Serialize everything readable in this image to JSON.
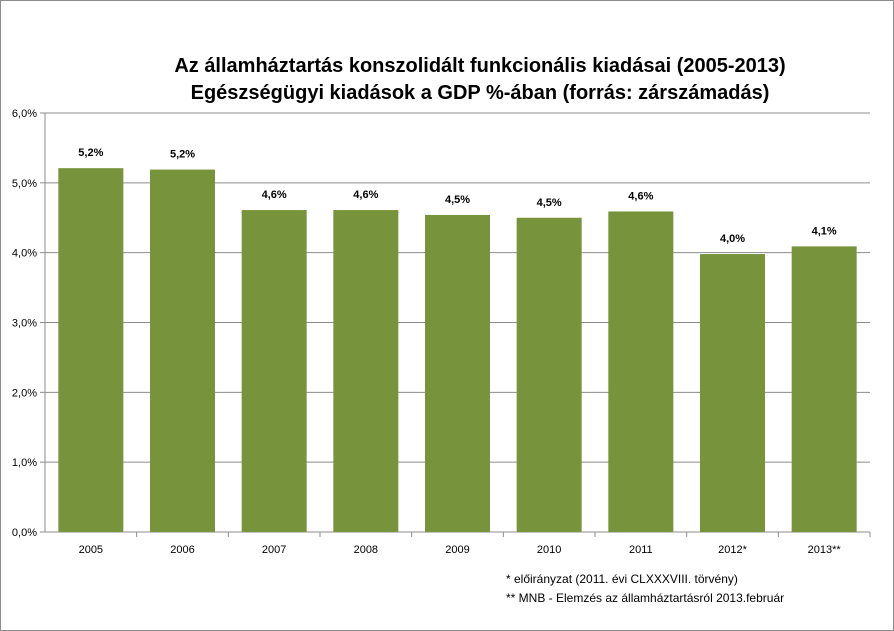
{
  "chart_data": {
    "type": "bar",
    "title": "Az államháztartás konszolidált funkcionális kiadásai (2005-2013)",
    "subtitle": "Egészségügyi kiadások a GDP %-ában (forrás: zárszámadás)",
    "categories": [
      "2005",
      "2006",
      "2007",
      "2008",
      "2009",
      "2010",
      "2011",
      "2012*",
      "2013**"
    ],
    "values": [
      5.21,
      5.19,
      4.61,
      4.61,
      4.54,
      4.5,
      4.59,
      3.98,
      4.09
    ],
    "data_labels": [
      "5,2%",
      "5,2%",
      "4,6%",
      "4,6%",
      "4,5%",
      "4,5%",
      "4,6%",
      "4,0%",
      "4,1%"
    ],
    "y_ticks": [
      "0,0%",
      "1,0%",
      "2,0%",
      "3,0%",
      "4,0%",
      "5,0%",
      "6,0%"
    ],
    "ylim": [
      0,
      6
    ],
    "grid": true,
    "bar_color": "#77933c",
    "footnotes": [
      "*  előirányzat (2011. évi CLXXXVIII. törvény)",
      "**  MNB - Elemzés az államháztartásról 2013.február"
    ]
  }
}
